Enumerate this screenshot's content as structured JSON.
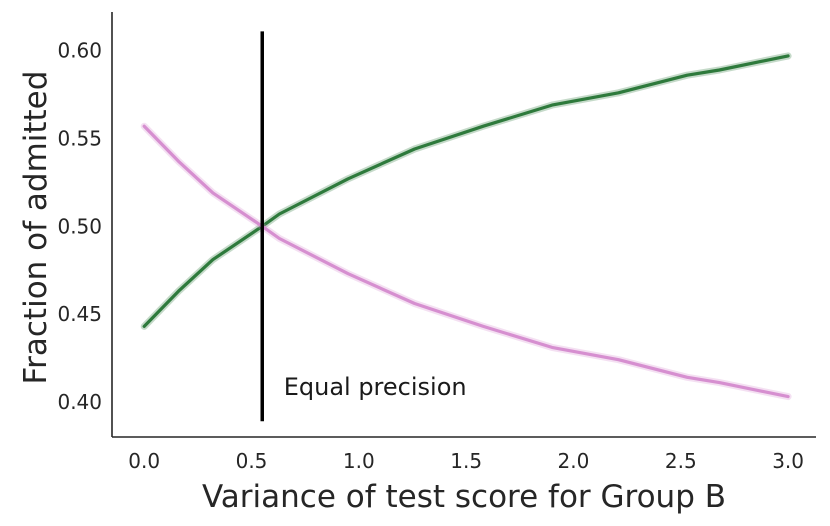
{
  "chart_data": {
    "type": "line",
    "xlabel": "Variance of test score for Group B",
    "ylabel": "Fraction of admitted",
    "xlim": [
      -0.15,
      3.13
    ],
    "ylim": [
      0.38,
      0.622
    ],
    "x_ticks": [
      0.0,
      0.5,
      1.0,
      1.5,
      2.0,
      2.5,
      3.0
    ],
    "x_tick_labels": [
      "0.0",
      "0.5",
      "1.0",
      "1.5",
      "2.0",
      "2.5",
      "3.0"
    ],
    "y_ticks": [
      0.4,
      0.45,
      0.5,
      0.55,
      0.6
    ],
    "y_tick_labels": [
      "0.40",
      "0.45",
      "0.50",
      "0.55",
      "0.60"
    ],
    "grid": false,
    "series": [
      {
        "color": "#2e7a3c",
        "x": [
          0.0,
          0.16,
          0.32,
          0.55,
          0.63,
          0.95,
          1.26,
          1.58,
          1.9,
          2.21,
          2.53,
          2.68,
          3.0
        ],
        "y": [
          0.443,
          0.463,
          0.481,
          0.5,
          0.507,
          0.527,
          0.544,
          0.557,
          0.569,
          0.576,
          0.586,
          0.589,
          0.597
        ]
      },
      {
        "color": "#d68fd0",
        "x": [
          0.0,
          0.16,
          0.32,
          0.55,
          0.63,
          0.95,
          1.26,
          1.58,
          1.9,
          2.21,
          2.53,
          2.68,
          3.0
        ],
        "y": [
          0.557,
          0.537,
          0.519,
          0.5,
          0.493,
          0.473,
          0.456,
          0.443,
          0.431,
          0.424,
          0.414,
          0.411,
          0.403
        ]
      }
    ],
    "vline": {
      "x": 0.55,
      "y_range": [
        0.389,
        0.611
      ],
      "color": "#000000"
    },
    "annotations": [
      {
        "text": "Equal precision",
        "x": 0.65,
        "y": 0.404
      }
    ]
  }
}
